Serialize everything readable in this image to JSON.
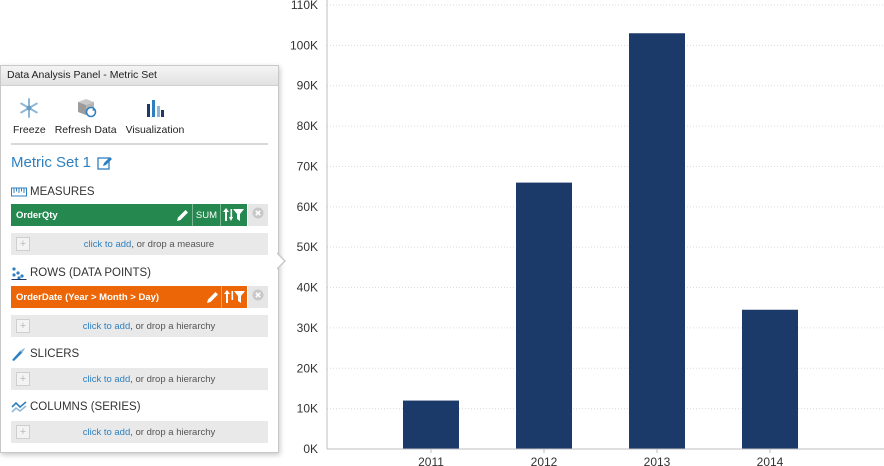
{
  "chart_data": {
    "type": "bar",
    "categories": [
      "2011",
      "2012",
      "2013",
      "2014"
    ],
    "values": [
      12000,
      66000,
      103000,
      34500
    ],
    "ylim": [
      0,
      110000
    ],
    "yticks": [
      0,
      10000,
      20000,
      30000,
      40000,
      50000,
      60000,
      70000,
      80000,
      90000,
      100000,
      110000
    ],
    "ytick_labels": [
      "0K",
      "10K",
      "20K",
      "30K",
      "40K",
      "50K",
      "60K",
      "70K",
      "80K",
      "90K",
      "100K",
      "110K"
    ],
    "grid": true,
    "bar_color": "#1b3a69"
  },
  "panel": {
    "title": "Data Analysis Panel - Metric Set",
    "toolbar": {
      "freeze_label": "Freeze",
      "refresh_label": "Refresh Data",
      "visualization_label": "Visualization"
    },
    "metric_set_title": "Metric Set 1",
    "measures": {
      "label": "MEASURES",
      "field": "OrderQty",
      "aggregate": "SUM",
      "drop_link": "click to add",
      "drop_text": ", or drop a measure",
      "color": "#25884f"
    },
    "rows": {
      "label": "ROWS (DATA POINTS)",
      "field": "OrderDate (Year > Month > Day)",
      "drop_link": "click to add",
      "drop_text": ", or drop a hierarchy",
      "color": "#ec6608"
    },
    "slicers": {
      "label": "SLICERS",
      "drop_link": "click to add",
      "drop_text": ", or drop a hierarchy"
    },
    "columns": {
      "label": "COLUMNS (SERIES)",
      "drop_link": "click to add",
      "drop_text": ", or drop a hierarchy"
    }
  }
}
